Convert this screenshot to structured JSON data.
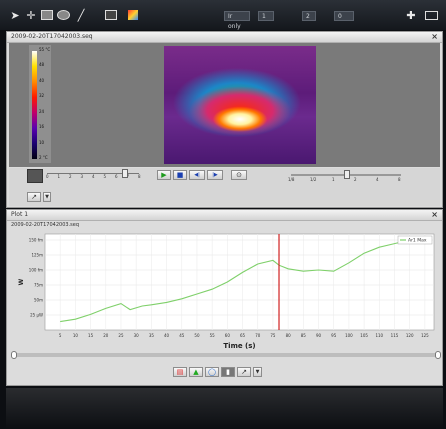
{
  "toolbar": {
    "icons": [
      "pointer-icon",
      "crosshair-icon",
      "rectangle-icon",
      "ellipse-icon",
      "line-icon",
      "image-icon",
      "palette-icon",
      "pin-icon",
      "layout-icon"
    ],
    "selects": [
      {
        "value": "Ir only"
      },
      {
        "value": "1"
      },
      {
        "value": "2"
      },
      {
        "value": "0"
      }
    ]
  },
  "image_window": {
    "title": "2009-02-20T17042003.seq",
    "scale_labels": [
      "55 °C",
      "48",
      "40",
      "32",
      "24",
      "16",
      "10",
      "2 °C"
    ],
    "close": "×"
  },
  "timeline": {
    "ticks": [
      "0",
      "1",
      "2",
      "3",
      "4",
      "5",
      "6",
      "7",
      "8"
    ],
    "play": "▶",
    "stop": "■",
    "prev": "◀|",
    "next": "|▶",
    "record": "⊙",
    "zoom_ticks": [
      "1/8",
      "1/2",
      "1",
      "2",
      "4",
      "8"
    ]
  },
  "plot_window": {
    "title": "Plot 1",
    "file": "2009-02-20T17042003.seq",
    "close": "×"
  },
  "chart_data": {
    "type": "line",
    "xlabel": "Time (s)",
    "ylabel": "W",
    "legend": "Ar1 Max",
    "legend_position": "top-right",
    "grid": true,
    "ytick_labels": [
      "25 µW",
      "50m",
      "75m",
      "100 fm",
      "125m",
      "150 fm"
    ],
    "x_ticks": [
      "5",
      "10",
      "15",
      "20",
      "25",
      "30",
      "35",
      "40",
      "45",
      "50",
      "55",
      "60",
      "65",
      "70",
      "75",
      "80",
      "85",
      "90",
      "95",
      "100",
      "105",
      "110",
      "115",
      "120",
      "125"
    ],
    "xlim": [
      0,
      128
    ],
    "ylim": [
      0,
      160
    ],
    "series": [
      {
        "name": "Ar1 Max",
        "color": "#7fd06a",
        "x": [
          5,
          10,
          15,
          20,
          25,
          28,
          32,
          35,
          40,
          45,
          50,
          55,
          60,
          65,
          70,
          75,
          77,
          80,
          85,
          90,
          95,
          100,
          105,
          110,
          115,
          120,
          125
        ],
        "y": [
          14,
          18,
          26,
          36,
          44,
          34,
          40,
          42,
          46,
          52,
          60,
          68,
          80,
          96,
          110,
          116,
          108,
          102,
          98,
          100,
          98,
          112,
          128,
          138,
          144,
          150,
          152
        ]
      }
    ],
    "marker_x": 77
  },
  "bottom_toolbar": {
    "icons": [
      "chart-red-icon",
      "chart-green-icon",
      "chart-blue-icon",
      "chart-grey-icon",
      "chart-line-icon",
      "dropdown-icon"
    ]
  }
}
